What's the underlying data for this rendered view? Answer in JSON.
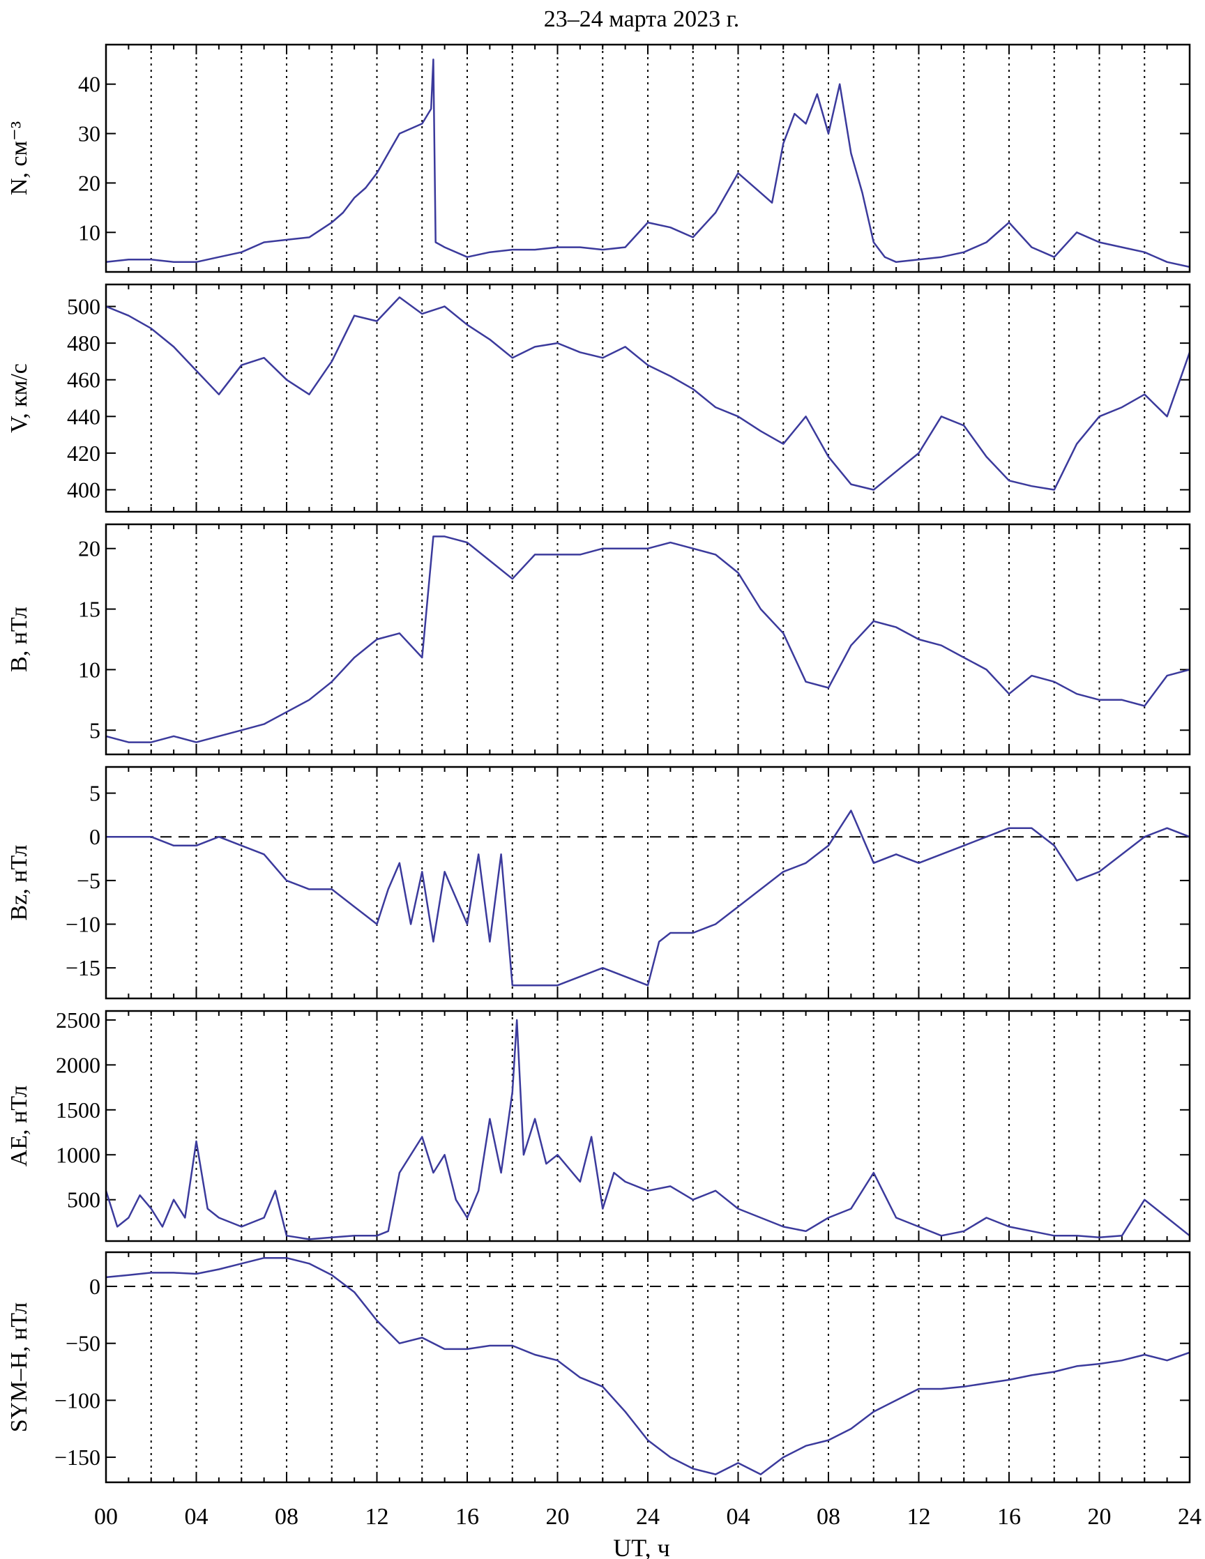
{
  "title": "23–24 марта 2023 г.",
  "xlabel": "UT, ч",
  "x_ticks": [
    "00",
    "04",
    "08",
    "12",
    "16",
    "20",
    "24",
    "04",
    "08",
    "12",
    "16",
    "20",
    "24"
  ],
  "x_range_hours": [
    0,
    48
  ],
  "series_color": "#3b3a9c",
  "chart_data": [
    {
      "type": "line",
      "ylabel": "N, см⁻³",
      "ylim": [
        2,
        48
      ],
      "yticks": [
        10,
        20,
        30,
        40
      ],
      "zero_line": false,
      "grid": "dotted vertical lines every 2 h",
      "series": [
        {
          "x": [
            0,
            1,
            2,
            3,
            4,
            5,
            6,
            7,
            8,
            9,
            10,
            10.5,
            11,
            11.5,
            12,
            12.5,
            13,
            13.5,
            14,
            14.4,
            14.5,
            14.6,
            15,
            16,
            17,
            18,
            19,
            20,
            21,
            22,
            23,
            24,
            25,
            26,
            27,
            28,
            29,
            29.5,
            30,
            30.5,
            31,
            31.5,
            32,
            32.5,
            33,
            33.5,
            34,
            34.5,
            35,
            36,
            37,
            38,
            39,
            40,
            41,
            42,
            43,
            44,
            45,
            46,
            47,
            48
          ],
          "y": [
            4,
            4.5,
            4.5,
            4,
            4,
            5,
            6,
            8,
            8.5,
            9,
            12,
            14,
            17,
            19,
            22,
            26,
            30,
            31,
            32,
            35,
            45,
            8,
            7,
            5,
            6,
            6.5,
            6.5,
            7,
            7,
            6.5,
            7,
            12,
            11,
            9,
            14,
            22,
            18,
            16,
            28,
            34,
            32,
            38,
            30,
            40,
            26,
            18,
            8,
            5,
            4,
            4.5,
            5,
            6,
            8,
            12,
            7,
            5,
            10,
            8,
            7,
            6,
            4,
            3
          ]
        }
      ]
    },
    {
      "type": "line",
      "ylabel": "V, км/с",
      "ylim": [
        388,
        512
      ],
      "yticks": [
        400,
        420,
        440,
        460,
        480,
        500
      ],
      "zero_line": false,
      "grid": "dotted vertical lines every 2 h",
      "series": [
        {
          "x": [
            0,
            1,
            2,
            3,
            4,
            5,
            6,
            7,
            8,
            9,
            10,
            11,
            12,
            13,
            14,
            15,
            16,
            17,
            18,
            19,
            20,
            21,
            22,
            23,
            24,
            25,
            26,
            27,
            28,
            29,
            30,
            31,
            32,
            33,
            34,
            35,
            36,
            37,
            38,
            39,
            40,
            41,
            42,
            43,
            44,
            45,
            46,
            47,
            48
          ],
          "y": [
            500,
            495,
            488,
            478,
            465,
            452,
            468,
            472,
            460,
            452,
            470,
            495,
            492,
            505,
            496,
            500,
            490,
            482,
            472,
            478,
            480,
            475,
            472,
            478,
            468,
            462,
            455,
            445,
            440,
            432,
            425,
            440,
            418,
            403,
            400,
            410,
            420,
            440,
            435,
            418,
            405,
            402,
            400,
            425,
            440,
            445,
            452,
            440,
            475
          ]
        }
      ]
    },
    {
      "type": "line",
      "ylabel": "B, нТл",
      "ylim": [
        3,
        22
      ],
      "yticks": [
        5,
        10,
        15,
        20
      ],
      "zero_line": false,
      "grid": "dotted vertical lines every 2 h",
      "series": [
        {
          "x": [
            0,
            1,
            2,
            3,
            4,
            5,
            6,
            7,
            8,
            9,
            10,
            11,
            12,
            13,
            14,
            14.5,
            15,
            16,
            17,
            18,
            19,
            20,
            21,
            22,
            23,
            24,
            25,
            26,
            27,
            28,
            29,
            30,
            31,
            32,
            33,
            34,
            35,
            36,
            37,
            38,
            39,
            40,
            41,
            42,
            43,
            44,
            45,
            46,
            47,
            48
          ],
          "y": [
            4.5,
            4,
            4,
            4.5,
            4,
            4.5,
            5,
            5.5,
            6.5,
            7.5,
            9,
            11,
            12.5,
            13,
            11,
            21,
            21,
            20.5,
            19,
            17.5,
            19.5,
            19.5,
            19.5,
            20,
            20,
            20,
            20.5,
            20,
            19.5,
            18,
            15,
            13,
            9,
            8.5,
            12,
            14,
            13.5,
            12.5,
            12,
            11,
            10,
            8,
            9.5,
            9,
            8,
            7.5,
            7.5,
            7,
            9.5,
            10
          ]
        }
      ]
    },
    {
      "type": "line",
      "ylabel": "Bz, нТл",
      "ylim": [
        -18.5,
        8
      ],
      "yticks": [
        -15,
        -10,
        -5,
        0,
        5
      ],
      "zero_line": true,
      "grid": "dotted vertical lines every 2 h",
      "series": [
        {
          "x": [
            0,
            1,
            2,
            3,
            4,
            5,
            6,
            7,
            8,
            9,
            10,
            11,
            12,
            12.5,
            13,
            13.5,
            14,
            14.5,
            15,
            16,
            16.5,
            17,
            17.5,
            18,
            19,
            20,
            21,
            22,
            23,
            24,
            24.5,
            25,
            26,
            27,
            28,
            29,
            30,
            31,
            32,
            33,
            34,
            35,
            36,
            37,
            38,
            39,
            40,
            41,
            42,
            43,
            44,
            45,
            46,
            47,
            48
          ],
          "y": [
            0,
            0,
            0,
            -1,
            -1,
            0,
            -1,
            -2,
            -5,
            -6,
            -6,
            -8,
            -10,
            -6,
            -3,
            -10,
            -4,
            -12,
            -4,
            -10,
            -2,
            -12,
            -2,
            -17,
            -17,
            -17,
            -16,
            -15,
            -16,
            -17,
            -12,
            -11,
            -11,
            -10,
            -8,
            -6,
            -4,
            -3,
            -1,
            3,
            -3,
            -2,
            -3,
            -2,
            -1,
            0,
            1,
            1,
            -1,
            -5,
            -4,
            -2,
            0,
            1,
            0
          ]
        }
      ]
    },
    {
      "type": "line",
      "ylabel": "AE, нТл",
      "ylim": [
        40,
        2600
      ],
      "yticks": [
        500,
        1000,
        1500,
        2000,
        2500
      ],
      "zero_line": false,
      "grid": "dotted vertical lines every 2 h",
      "series": [
        {
          "x": [
            0,
            0.5,
            1,
            1.5,
            2,
            2.5,
            3,
            3.5,
            4,
            4.5,
            5,
            6,
            7,
            7.5,
            8,
            9,
            10,
            11,
            12,
            12.5,
            13,
            14,
            14.5,
            15,
            15.5,
            16,
            16.5,
            17,
            17.5,
            18,
            18.2,
            18.5,
            19,
            19.5,
            20,
            21,
            21.5,
            22,
            22.5,
            23,
            24,
            25,
            26,
            27,
            28,
            29,
            30,
            31,
            32,
            33,
            34,
            35,
            36,
            37,
            38,
            39,
            40,
            41,
            42,
            43,
            44,
            45,
            46,
            47,
            48
          ],
          "y": [
            600,
            200,
            300,
            550,
            400,
            200,
            500,
            300,
            1150,
            400,
            300,
            200,
            300,
            600,
            100,
            60,
            80,
            100,
            100,
            150,
            800,
            1200,
            800,
            1000,
            500,
            300,
            600,
            1400,
            800,
            1700,
            2500,
            1000,
            1400,
            900,
            1000,
            700,
            1200,
            400,
            800,
            700,
            600,
            650,
            500,
            600,
            400,
            300,
            200,
            150,
            300,
            400,
            800,
            300,
            200,
            100,
            150,
            300,
            200,
            150,
            100,
            100,
            80,
            100,
            500,
            300,
            100
          ]
        }
      ]
    },
    {
      "type": "line",
      "ylabel": "SYM–H, нТл",
      "ylim": [
        -172,
        30
      ],
      "yticks": [
        -150,
        -100,
        -50,
        0
      ],
      "zero_line": true,
      "grid": "dotted vertical lines every 2 h",
      "series": [
        {
          "x": [
            0,
            1,
            2,
            3,
            4,
            5,
            6,
            7,
            8,
            9,
            10,
            11,
            12,
            13,
            14,
            15,
            16,
            17,
            18,
            19,
            20,
            21,
            22,
            23,
            24,
            25,
            26,
            27,
            28,
            29,
            30,
            31,
            32,
            33,
            34,
            35,
            36,
            37,
            38,
            39,
            40,
            41,
            42,
            43,
            44,
            45,
            46,
            47,
            48
          ],
          "y": [
            8,
            10,
            12,
            12,
            11,
            15,
            20,
            25,
            25,
            20,
            10,
            -5,
            -30,
            -50,
            -45,
            -55,
            -55,
            -52,
            -52,
            -60,
            -65,
            -80,
            -88,
            -110,
            -135,
            -150,
            -160,
            -165,
            -155,
            -165,
            -150,
            -140,
            -135,
            -125,
            -110,
            -100,
            -90,
            -90,
            -88,
            -85,
            -82,
            -78,
            -75,
            -70,
            -68,
            -65,
            -60,
            -65,
            -58
          ]
        }
      ]
    }
  ]
}
